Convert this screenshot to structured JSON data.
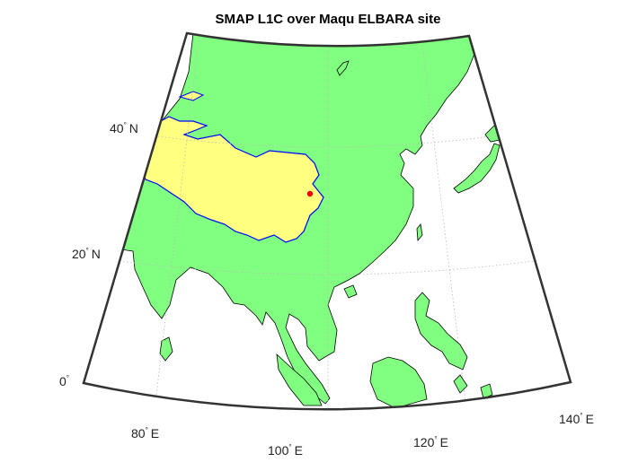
{
  "figure": {
    "title": "SMAP L1C over Maqu ELBARA site"
  },
  "map": {
    "projection": "conic",
    "colors": {
      "land": "#80ff80",
      "plateau": "#ffff80",
      "plateau_outline": "#0000ff",
      "ocean": "#ffffff",
      "frame": "#333333",
      "coast": "#000000",
      "grid": "#bbbbbb",
      "marker": "#ff0000"
    },
    "lat_labels": [
      {
        "value": "40",
        "deg": "°",
        "hemi": "N"
      },
      {
        "value": "20",
        "deg": "°",
        "hemi": "N"
      },
      {
        "value": "0",
        "deg": "°",
        "hemi": ""
      }
    ],
    "lon_labels": [
      {
        "value": "80",
        "deg": "°",
        "hemi": "E"
      },
      {
        "value": "100",
        "deg": "°",
        "hemi": "E"
      },
      {
        "value": "120",
        "deg": "°",
        "hemi": "E"
      },
      {
        "value": "140",
        "deg": "°",
        "hemi": "E"
      }
    ],
    "site": {
      "name": "Maqu ELBARA site",
      "lat": 33.9,
      "lon": 102.1
    }
  }
}
